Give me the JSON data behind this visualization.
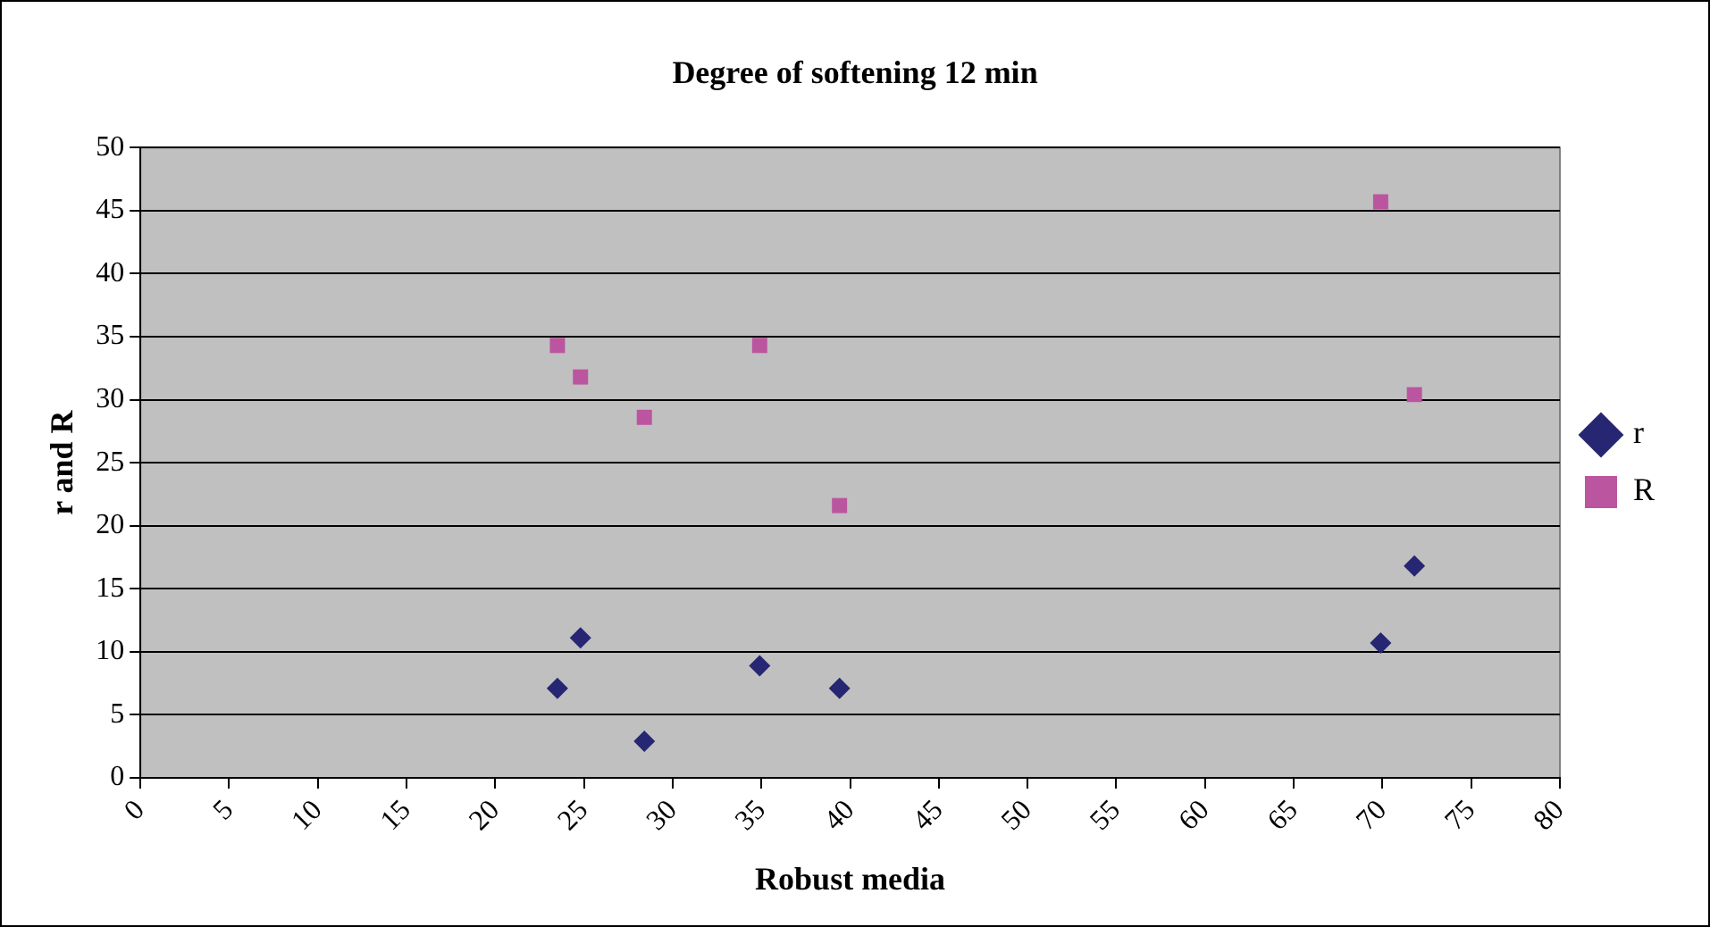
{
  "chart_data": {
    "type": "scatter",
    "title": "Degree of softening 12 min",
    "xlabel": "Robust media",
    "ylabel": "r and R",
    "xlim": [
      0,
      80
    ],
    "xticks": [
      0,
      5,
      10,
      15,
      20,
      25,
      30,
      35,
      40,
      45,
      50,
      55,
      60,
      65,
      70,
      75,
      80
    ],
    "ylim": [
      0,
      50
    ],
    "yticks": [
      0,
      5,
      10,
      15,
      20,
      25,
      30,
      35,
      40,
      45,
      50
    ],
    "grid": "y",
    "legend": "right",
    "series": [
      {
        "name": "r",
        "color": "#262673",
        "marker": "diamond",
        "x": [
          23.5,
          24.8,
          28.4,
          34.9,
          39.4,
          69.9,
          71.8
        ],
        "values": [
          7.1,
          11.1,
          2.9,
          8.9,
          7.1,
          10.7,
          16.8
        ]
      },
      {
        "name": "R",
        "color": "#bb55a0",
        "marker": "square",
        "x": [
          23.5,
          24.8,
          28.4,
          34.9,
          39.4,
          69.9,
          71.8
        ],
        "values": [
          34.3,
          31.8,
          28.6,
          34.3,
          21.6,
          45.7,
          30.4
        ]
      }
    ]
  }
}
